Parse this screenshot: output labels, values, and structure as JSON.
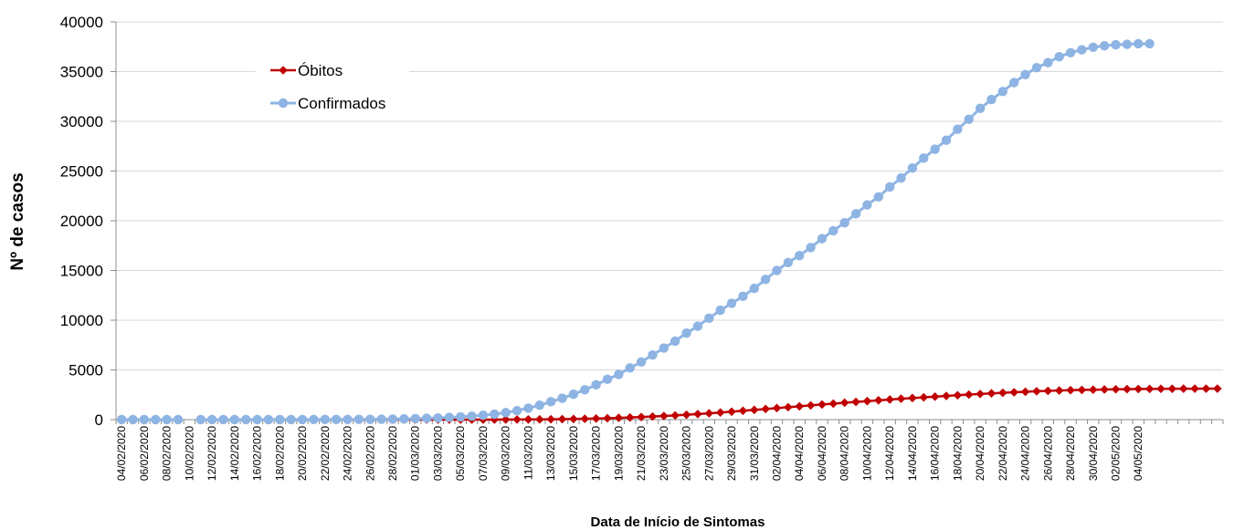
{
  "chart_data": {
    "type": "line",
    "xlabel": "Data de Início de Sintomas",
    "ylabel": "Nº de casos",
    "ylim": [
      0,
      40000
    ],
    "yticks": [
      0,
      5000,
      10000,
      15000,
      20000,
      25000,
      30000,
      35000,
      40000
    ],
    "grid": true,
    "legend_position": "top-left",
    "x_labels": [
      "04/02/2020",
      "06/02/2020",
      "08/02/2020",
      "10/02/2020",
      "12/02/2020",
      "14/02/2020",
      "16/02/2020",
      "18/02/2020",
      "20/02/2020",
      "22/02/2020",
      "24/02/2020",
      "26/02/2020",
      "28/02/2020",
      "01/03/2020",
      "03/03/2020",
      "05/03/2020",
      "07/03/2020",
      "09/03/2020",
      "11/03/2020",
      "13/03/2020",
      "15/03/2020",
      "17/03/2020",
      "19/03/2020",
      "21/03/2020",
      "23/03/2020",
      "25/03/2020",
      "27/03/2020",
      "29/03/2020",
      "31/03/2020",
      "02/04/2020",
      "04/04/2020",
      "06/04/2020",
      "08/04/2020",
      "10/04/2020",
      "12/04/2020",
      "14/04/2020",
      "16/04/2020",
      "18/04/2020",
      "20/04/2020",
      "22/04/2020",
      "24/04/2020",
      "26/04/2020",
      "28/04/2020",
      "30/04/2020",
      "02/05/2020",
      "04/05/2020"
    ],
    "series": [
      {
        "name": "Óbitos",
        "color": "#c00000",
        "marker": "diamond",
        "start": "18/02/2020",
        "values": [
          0,
          0,
          0,
          0,
          0,
          0,
          0,
          0,
          0,
          0,
          0,
          0,
          0,
          0,
          0,
          0,
          1,
          2,
          3,
          5,
          8,
          12,
          18,
          25,
          35,
          48,
          65,
          85,
          110,
          140,
          175,
          215,
          260,
          310,
          365,
          425,
          490,
          560,
          635,
          715,
          800,
          890,
          980,
          1070,
          1160,
          1250,
          1340,
          1430,
          1520,
          1610,
          1700,
          1780,
          1860,
          1940,
          2020,
          2100,
          2170,
          2240,
          2310,
          2380,
          2450,
          2520,
          2580,
          2640,
          2700,
          2750,
          2800,
          2850,
          2890,
          2930,
          2960,
          2990,
          3010,
          3030,
          3050,
          3065,
          3080,
          3090,
          3100,
          3105,
          3110,
          3112,
          3114,
          3115
        ]
      },
      {
        "name": "Confirmados",
        "color": "#8eb4e3",
        "marker": "circle",
        "start": "04/02/2020",
        "values": [
          1,
          1,
          1,
          1,
          1,
          1,
          null,
          2,
          2,
          3,
          3,
          4,
          5,
          6,
          7,
          8,
          10,
          12,
          14,
          16,
          20,
          25,
          30,
          40,
          55,
          70,
          95,
          130,
          170,
          220,
          280,
          350,
          440,
          550,
          700,
          900,
          1150,
          1450,
          1800,
          2150,
          2550,
          3000,
          3500,
          4050,
          4550,
          5200,
          5800,
          6500,
          7200,
          7900,
          8700,
          9400,
          10200,
          11000,
          11700,
          12400,
          13200,
          14100,
          15000,
          15800,
          16500,
          17300,
          18200,
          19000,
          19800,
          20700,
          21600,
          22400,
          23400,
          24300,
          25300,
          26300,
          27200,
          28100,
          29200,
          30200,
          31300,
          32200,
          33000,
          33900,
          34700,
          35400,
          35900,
          36500,
          36900,
          37200,
          37450,
          37600,
          37700,
          37750,
          37800,
          37800
        ]
      }
    ]
  }
}
